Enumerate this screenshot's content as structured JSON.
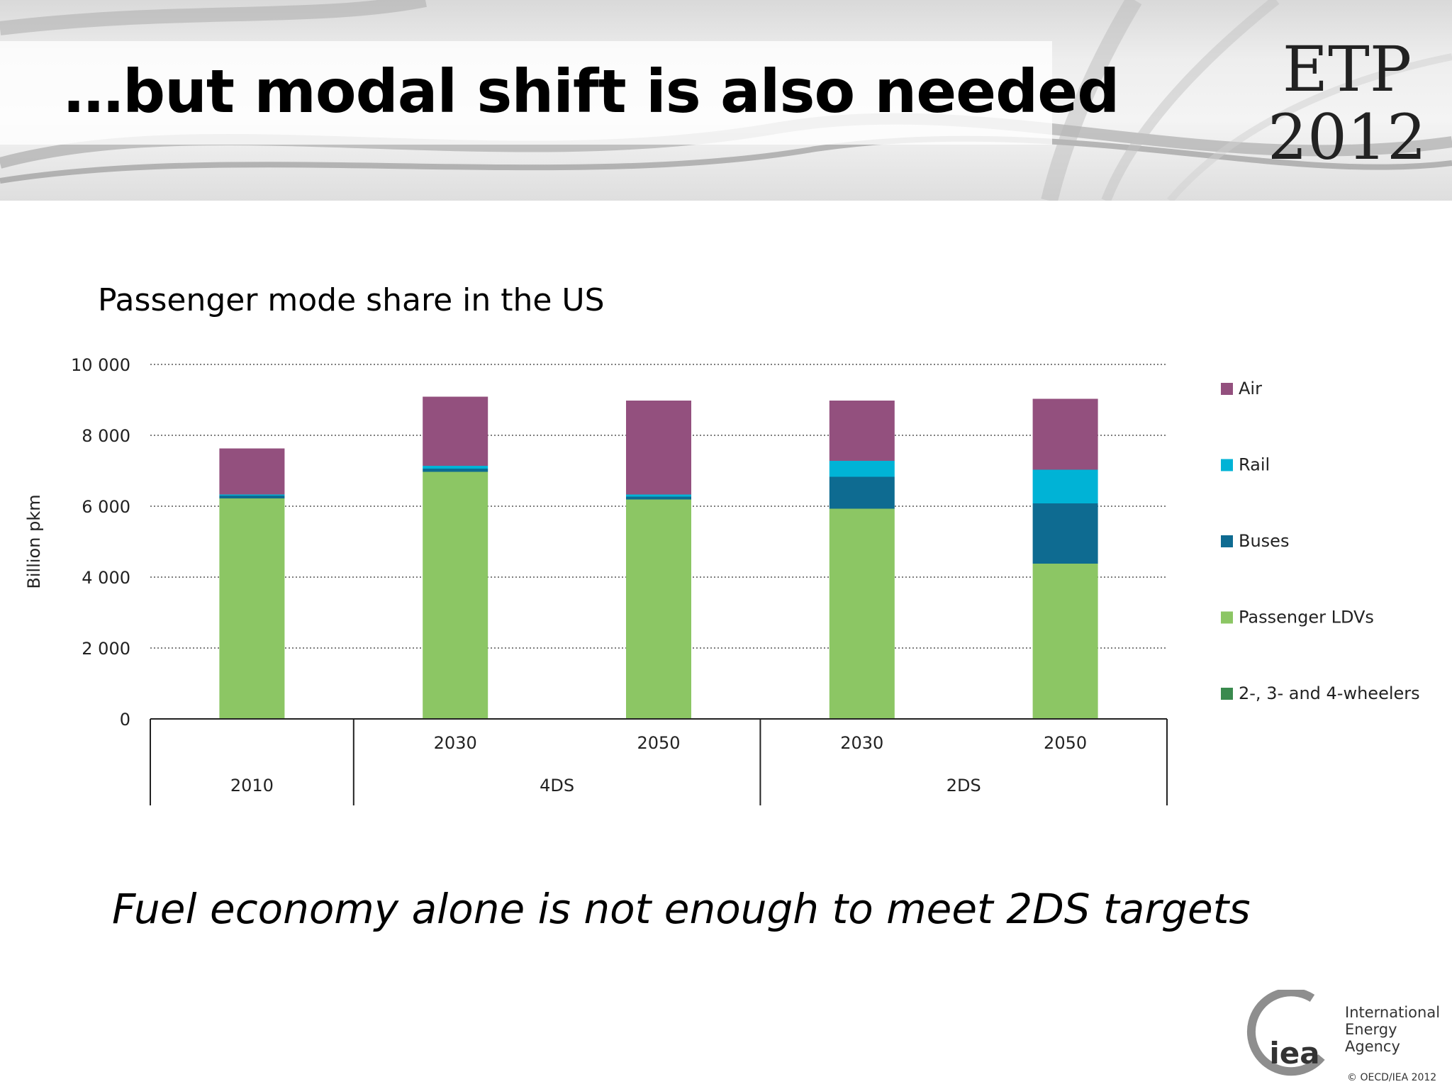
{
  "slide": {
    "title": "…but modal shift is also needed",
    "badge_line1": "ETP",
    "badge_line2": "2012",
    "subtitle": "Fuel economy alone is not enough to meet 2DS targets",
    "logo_text": "iea",
    "logo_line1": "International",
    "logo_line2": "Energy Agency",
    "copyright": "© OECD/IEA 2012"
  },
  "chart_data": {
    "type": "bar",
    "stacked": true,
    "title": "Passenger mode share in the US",
    "ylabel": "Billion pkm",
    "ylim": [
      0,
      10000
    ],
    "yticks": [
      0,
      2000,
      4000,
      6000,
      8000,
      10000
    ],
    "ytick_labels": [
      "0",
      "2 000",
      "4 000",
      "6 000",
      "8 000",
      "10 000"
    ],
    "grid": true,
    "legend_position": "right",
    "categories": [
      "2010",
      "2030",
      "2050",
      "2030",
      "2050"
    ],
    "groups": [
      {
        "label": "2010",
        "categories": [
          0
        ],
        "show_category_labels": false
      },
      {
        "label": "4DS",
        "categories": [
          1,
          2
        ],
        "show_category_labels": true
      },
      {
        "label": "2DS",
        "categories": [
          3,
          4
        ],
        "show_category_labels": true
      }
    ],
    "series": [
      {
        "name": "2-, 3- and 4-wheelers",
        "color": "#3a8a4e",
        "values": [
          20,
          20,
          20,
          20,
          20
        ]
      },
      {
        "name": "Passenger LDVs",
        "color": "#8cc664",
        "values": [
          6200,
          6950,
          6170,
          5910,
          4360
        ]
      },
      {
        "name": "Buses",
        "color": "#0e6b91",
        "values": [
          80,
          90,
          80,
          900,
          1700
        ]
      },
      {
        "name": "Rail",
        "color": "#00b3d6",
        "values": [
          30,
          80,
          60,
          450,
          950
        ]
      },
      {
        "name": "Air",
        "color": "#93507e",
        "values": [
          1300,
          1950,
          2650,
          1700,
          2000
        ]
      }
    ],
    "legend_order": [
      "Air",
      "Rail",
      "Buses",
      "Passenger LDVs",
      "2-, 3- and 4-wheelers"
    ]
  }
}
